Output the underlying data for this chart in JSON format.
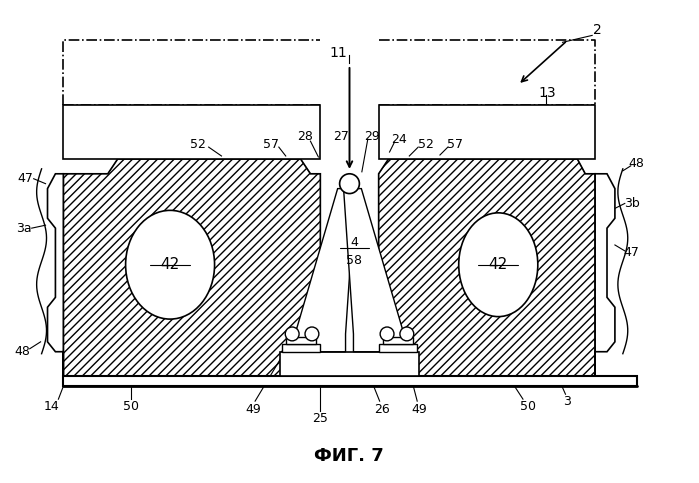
{
  "figure_label": "ФИГ. 7",
  "bg_color": "#ffffff",
  "line_color": "#000000"
}
